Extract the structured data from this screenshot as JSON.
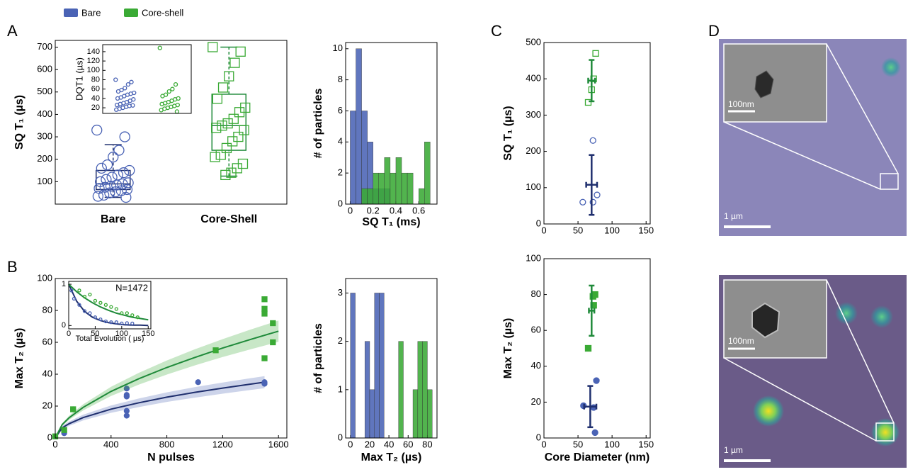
{
  "panels": [
    "A",
    "B",
    "C",
    "D"
  ],
  "images": [
    {
      "inset_scale": "100nm",
      "scale": "1 µm"
    },
    {
      "inset_scale": "100nm",
      "scale": "1 µm"
    }
  ],
  "chart_data": [
    {
      "type": "box",
      "ylabel": "SQ T₁ (µs)",
      "categories": [
        "Bare",
        "Core-Shell"
      ],
      "ylim": [
        0,
        730
      ],
      "yticks": [
        100,
        200,
        300,
        400,
        500,
        600,
        700
      ],
      "series": [
        {
          "name": "Bare",
          "color": "#4a63b5",
          "line_color": "#1f2f6e",
          "marker": "circle",
          "values": [
            330,
            300,
            240,
            210,
            175,
            160,
            150,
            140,
            130,
            120,
            110,
            100,
            95,
            90,
            85,
            80,
            75,
            70,
            65,
            60,
            55,
            50,
            40,
            35,
            30
          ],
          "box": {
            "whislo": 30,
            "q1": 65,
            "med": 90,
            "q3": 150,
            "whishi": 265
          }
        },
        {
          "name": "Core-shell",
          "color": "#3aaa35",
          "line_color": "#1f8a3a",
          "marker": "square",
          "values": [
            700,
            680,
            630,
            570,
            520,
            470,
            430,
            410,
            380,
            360,
            350,
            340,
            330,
            300,
            280,
            250,
            220,
            210,
            180,
            160,
            140,
            130
          ],
          "box": {
            "whislo": 125,
            "q1": 240,
            "med": 350,
            "q3": 490,
            "whishi": 700
          }
        }
      ]
    },
    {
      "type": "strip",
      "ylabel": "DQT1 (µs)",
      "ylim": [
        8,
        155
      ],
      "yticks": [
        20,
        40,
        60,
        80,
        100,
        120,
        140
      ],
      "series": [
        {
          "color": "#4a63b5",
          "values": [
            80,
            75,
            70,
            62,
            58,
            55,
            52,
            50,
            48,
            45,
            42,
            40,
            38,
            35,
            32,
            30,
            28,
            26,
            25,
            24,
            22,
            20,
            18,
            16
          ]
        },
        {
          "color": "#3aaa35",
          "values": [
            148,
            70,
            60,
            55,
            48,
            45,
            40,
            38,
            35,
            32,
            30,
            28,
            26,
            24,
            22,
            20,
            18,
            15,
            12
          ]
        }
      ]
    },
    {
      "type": "histogram",
      "ylabel": "# of particles",
      "xlabel": "SQ T₁ (ms)",
      "xlim": [
        -0.04,
        0.76
      ],
      "xticks": [
        0,
        0.2,
        0.4,
        0.6
      ],
      "ylim": [
        0,
        10.4
      ],
      "yticks": [
        0,
        2,
        4,
        6,
        8,
        10
      ],
      "series": [
        {
          "color": "#4a63b5",
          "bins": [
            0,
            0.05,
            0.1,
            0.15,
            0.2,
            0.25,
            0.3,
            0.35
          ],
          "values": [
            6,
            10,
            6,
            4,
            1,
            1,
            1
          ]
        },
        {
          "color": "#3aaa35",
          "bins": [
            0.1,
            0.15,
            0.2,
            0.25,
            0.3,
            0.35,
            0.4,
            0.45,
            0.5,
            0.55,
            0.6,
            0.65,
            0.7
          ],
          "values": [
            1,
            1,
            2,
            2,
            3,
            2,
            3,
            2,
            2,
            0,
            1,
            4
          ]
        }
      ]
    },
    {
      "type": "line",
      "xlabel": "N pulses",
      "ylabel": "Max T₂ (µs)",
      "xlim": [
        0,
        1660
      ],
      "xticks": [
        0,
        400,
        800,
        1200,
        1600
      ],
      "ylim": [
        0,
        100
      ],
      "yticks": [
        0,
        20,
        40,
        60,
        80,
        100
      ],
      "filled": true,
      "series": [
        {
          "color": "#4a63b5",
          "line_color": "#1f2f6e",
          "marker": "circle",
          "x": [
            0,
            64,
            64,
            128,
            512,
            512,
            512,
            512,
            512,
            1024,
            1500,
            1500
          ],
          "values": [
            1,
            3,
            4,
            18,
            31,
            27,
            26,
            17,
            14,
            35,
            35,
            34
          ],
          "fit_x": [
            0,
            50,
            100,
            200,
            400,
            600,
            800,
            1000,
            1200,
            1400,
            1500
          ],
          "fit": [
            0,
            6.4,
            9.0,
            12.8,
            18.1,
            22.1,
            25.6,
            28.6,
            31.3,
            33.8,
            35
          ],
          "fit_lower": [
            0,
            5.2,
            7.6,
            11,
            15.8,
            19.4,
            22.6,
            25.3,
            27.8,
            30.1,
            31.2
          ],
          "fit_upper": [
            0,
            7.6,
            10.4,
            14.6,
            20.4,
            24.8,
            28.6,
            31.9,
            34.8,
            37.5,
            38.8
          ]
        },
        {
          "color": "#3aaa35",
          "line_color": "#1f8a3a",
          "marker": "square",
          "x": [
            0,
            64,
            128,
            1150,
            1500,
            1500,
            1500,
            1500,
            1560,
            1560
          ],
          "values": [
            1,
            5,
            18,
            55,
            87,
            81,
            78,
            50,
            72,
            60
          ],
          "fit_x": [
            0,
            50,
            100,
            200,
            400,
            600,
            800,
            1000,
            1200,
            1400,
            1600
          ],
          "fit": [
            0,
            8.4,
            12.7,
            19.2,
            29.2,
            37.2,
            44.2,
            50.5,
            56.4,
            61.8,
            67
          ],
          "fit_lower": [
            0,
            7.6,
            11.4,
            17.3,
            26.3,
            33.5,
            39.8,
            45.5,
            50.8,
            55.6,
            60.3
          ],
          "fit_upper": [
            0,
            9.2,
            14,
            21.1,
            32.1,
            40.9,
            48.6,
            55.6,
            62,
            68,
            73.7
          ]
        }
      ]
    },
    {
      "type": "line",
      "annotation": "N=1472",
      "xlabel": "Total Evolution ( µs)",
      "xlim": [
        0,
        155
      ],
      "xticks": [
        0,
        50,
        100,
        150
      ],
      "ylim": [
        -0.08,
        1.07
      ],
      "yticks": [
        0,
        1
      ],
      "filled": false,
      "series": [
        {
          "color": "#4a63b5",
          "line_color": "#1f2f6e",
          "marker": "circle",
          "x": [
            5,
            10,
            20,
            30,
            40,
            50,
            60,
            70,
            80,
            90,
            100,
            110,
            120
          ],
          "values": [
            0.85,
            0.65,
            0.5,
            0.35,
            0.3,
            0.2,
            0.15,
            0.1,
            0.08,
            0.08,
            0.05,
            0.06,
            0.05
          ],
          "fit_x": [
            0,
            15,
            30,
            45,
            60,
            75,
            90,
            105,
            120,
            135,
            150
          ],
          "fit": [
            1,
            0.59,
            0.34,
            0.2,
            0.12,
            0.07,
            0.04,
            0.02,
            0.01,
            0.01,
            0
          ]
        },
        {
          "color": "#3aaa35",
          "line_color": "#1f8a3a",
          "marker": "circle",
          "x": [
            20,
            30,
            40,
            50,
            60,
            70,
            80,
            90,
            100,
            110,
            120,
            130
          ],
          "values": [
            0.85,
            0.7,
            0.75,
            0.6,
            0.55,
            0.5,
            0.45,
            0.4,
            0.3,
            0.3,
            0.25,
            0.2
          ],
          "fit_x": [
            0,
            15,
            30,
            45,
            60,
            75,
            90,
            105,
            120,
            135,
            150
          ],
          "fit": [
            1,
            0.82,
            0.67,
            0.55,
            0.45,
            0.37,
            0.3,
            0.25,
            0.2,
            0.17,
            0.14
          ]
        }
      ]
    },
    {
      "type": "histogram",
      "ylabel": "# of particles",
      "xlabel": "Max T₂ (µs)",
      "xlim": [
        -5,
        90
      ],
      "xticks": [
        0,
        20,
        40,
        60,
        80
      ],
      "ylim": [
        0,
        3.3
      ],
      "yticks": [
        0,
        1,
        2,
        3
      ],
      "series": [
        {
          "color": "#4a63b5",
          "bins": [
            0,
            5,
            10,
            15,
            20,
            25,
            30,
            35
          ],
          "values": [
            3,
            0,
            0,
            2,
            1,
            3,
            3
          ]
        },
        {
          "color": "#3aaa35",
          "bins": [
            50,
            55,
            60,
            65,
            70,
            75,
            80,
            85
          ],
          "values": [
            2,
            0,
            0,
            1,
            2,
            2,
            1
          ]
        }
      ]
    },
    {
      "type": "errorbar",
      "ylabel": "SQ T₁ (µs)",
      "xlim": [
        0,
        156
      ],
      "xticks": [
        0,
        50,
        100,
        150
      ],
      "ylim": [
        0,
        500
      ],
      "yticks": [
        0,
        100,
        200,
        300,
        400,
        500
      ],
      "filled": false,
      "series": [
        {
          "color": "#4a63b5",
          "line_color": "#1f2f6e",
          "marker": "circle",
          "x": [
            57,
            72,
            72,
            78
          ],
          "values": [
            60,
            230,
            60,
            80
          ],
          "summary": {
            "x": 70,
            "xerr": 8,
            "y": 108,
            "ylow": 25,
            "yhigh": 190
          }
        },
        {
          "color": "#3aaa35",
          "line_color": "#1f8a3a",
          "marker": "square",
          "x": [
            65,
            70,
            73,
            76
          ],
          "values": [
            335,
            370,
            400,
            470
          ],
          "summary": {
            "x": 70,
            "xerr": 5,
            "y": 395,
            "ylow": 338,
            "yhigh": 452
          }
        }
      ]
    },
    {
      "type": "errorbar",
      "xlabel": "Core Diameter (nm)",
      "ylabel": "Max T₂ (µs)",
      "xlim": [
        0,
        156
      ],
      "xticks": [
        0,
        50,
        100,
        150
      ],
      "ylim": [
        0,
        100
      ],
      "yticks": [
        0,
        20,
        40,
        60,
        80,
        100
      ],
      "filled": true,
      "series": [
        {
          "color": "#4a63b5",
          "line_color": "#1f2f6e",
          "marker": "circle",
          "x": [
            58,
            73,
            77,
            75
          ],
          "values": [
            18,
            17,
            32,
            3
          ],
          "summary": {
            "x": 68,
            "xerr": 9,
            "y": 17.5,
            "ylow": 6,
            "yhigh": 29
          }
        },
        {
          "color": "#3aaa35",
          "line_color": "#1f8a3a",
          "marker": "square",
          "x": [
            65,
            72,
            75,
            73
          ],
          "values": [
            50,
            79,
            80,
            74
          ],
          "summary": {
            "x": 70,
            "xerr": 4,
            "y": 71,
            "ylow": 57,
            "yhigh": 85
          }
        }
      ]
    }
  ]
}
